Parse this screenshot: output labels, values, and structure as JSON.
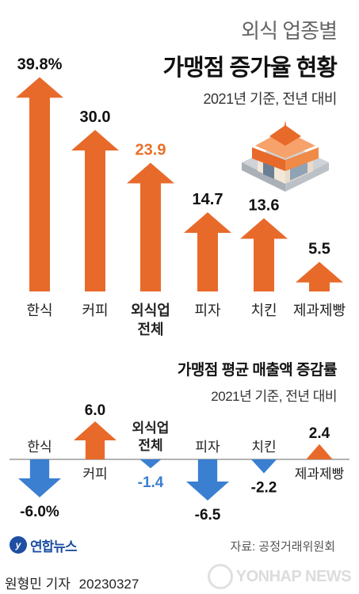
{
  "colors": {
    "orange": "#e86a2a",
    "orange_light": "#ef8a45",
    "blue": "#3a7fd0",
    "highlight_text": "#e8702a",
    "neg_text_highlight": "#3a7fd0"
  },
  "header": {
    "supertitle": "외식 업종별",
    "title": "가맹점 증가율 현황",
    "subtitle": "2021년 기준, 전년 대비"
  },
  "section2": {
    "title": "가맹점 평균 매출액 증감률",
    "subtitle": "2021년 기준, 전년 대비"
  },
  "illustration": "store-icon",
  "chart_data": [
    {
      "type": "bar",
      "title": "가맹점 증가율 현황",
      "categories": [
        "한식",
        "커피",
        "외식업\n전체",
        "피자",
        "치킨",
        "제과제빵"
      ],
      "category_lines": [
        [
          "한식"
        ],
        [
          "커피"
        ],
        [
          "외식업",
          "전체"
        ],
        [
          "피자"
        ],
        [
          "치킨"
        ],
        [
          "제과제빵"
        ]
      ],
      "values": [
        39.8,
        30.0,
        23.9,
        14.7,
        13.6,
        5.5
      ],
      "value_labels": [
        "39.8%",
        "30.0",
        "23.9",
        "14.7",
        "13.6",
        "5.5"
      ],
      "highlight_index": 2,
      "ylim": [
        0,
        40
      ]
    },
    {
      "type": "bar",
      "title": "가맹점 평균 매출액 증감률",
      "categories": [
        "한식",
        "커피",
        "외식업\n전체",
        "피자",
        "치킨",
        "제과제빵"
      ],
      "category_lines": [
        [
          "한식"
        ],
        [
          "커피"
        ],
        [
          "외식업",
          "전체"
        ],
        [
          "피자"
        ],
        [
          "치킨"
        ],
        [
          "제과제빵"
        ]
      ],
      "values": [
        -6.0,
        6.0,
        -1.4,
        -6.5,
        -2.2,
        2.4
      ],
      "value_labels": [
        "-6.0%",
        "6.0",
        "-1.4",
        "-6.5",
        "-2.2",
        "2.4"
      ],
      "highlight_index": 2,
      "ylim": [
        -7,
        7
      ]
    }
  ],
  "source": "자료: 공정거래위원회",
  "logo": {
    "mark": "y",
    "text": "연합뉴스"
  },
  "byline": {
    "author": "원형민 기자",
    "date": "20230327"
  },
  "watermark": "YONHAP NEWS"
}
